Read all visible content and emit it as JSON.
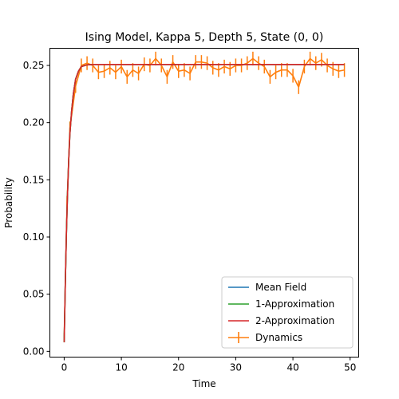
{
  "chart_data": {
    "type": "line",
    "title": "Ising Model, Kappa 5, Depth 5, State (0, 0)",
    "xlabel": "Time",
    "ylabel": "Probability",
    "xlim": [
      -2.5,
      51.5
    ],
    "ylim": [
      -0.005,
      0.265
    ],
    "xticks": [
      0,
      10,
      20,
      30,
      40,
      50
    ],
    "xtick_labels": [
      "0",
      "10",
      "20",
      "30",
      "40",
      "50"
    ],
    "yticks": [
      0.0,
      0.05,
      0.1,
      0.15,
      0.2,
      0.25
    ],
    "ytick_labels": [
      "0.00",
      "0.05",
      "0.10",
      "0.15",
      "0.20",
      "0.25"
    ],
    "grid": false,
    "legend_position": "lower-right",
    "series": [
      {
        "name": "Mean Field",
        "color": "#1f77b4",
        "x": [
          0,
          0.2,
          0.4,
          0.6,
          0.8,
          1.0,
          1.3,
          1.6,
          2.0,
          2.5,
          3.0,
          4.0,
          5.0,
          10,
          20,
          30,
          40,
          49
        ],
        "y": [
          0.008,
          0.06,
          0.105,
          0.14,
          0.168,
          0.19,
          0.21,
          0.225,
          0.238,
          0.245,
          0.249,
          0.2505,
          0.2508,
          0.2508,
          0.2508,
          0.2508,
          0.2508,
          0.2508
        ]
      },
      {
        "name": "1-Approximation",
        "color": "#2ca02c",
        "x": [
          0,
          0.2,
          0.4,
          0.6,
          0.8,
          1.0,
          1.3,
          1.6,
          2.0,
          2.5,
          3.0,
          4.0,
          5.0,
          10,
          20,
          30,
          40,
          49
        ],
        "y": [
          0.008,
          0.06,
          0.105,
          0.14,
          0.168,
          0.19,
          0.21,
          0.225,
          0.238,
          0.245,
          0.249,
          0.2505,
          0.2508,
          0.2508,
          0.2508,
          0.2508,
          0.2508,
          0.2508
        ]
      },
      {
        "name": "2-Approximation",
        "color": "#d62728",
        "x": [
          0,
          0.2,
          0.4,
          0.6,
          0.8,
          1.0,
          1.3,
          1.6,
          2.0,
          2.5,
          3.0,
          4.0,
          5.0,
          10,
          20,
          30,
          40,
          49
        ],
        "y": [
          0.008,
          0.06,
          0.105,
          0.14,
          0.168,
          0.19,
          0.21,
          0.225,
          0.238,
          0.245,
          0.249,
          0.2505,
          0.2508,
          0.2508,
          0.2508,
          0.2508,
          0.2508,
          0.2508
        ]
      },
      {
        "name": "Dynamics",
        "color": "#ff7f0e",
        "errorbars": true,
        "x": [
          0,
          0.5,
          1,
          2,
          3,
          4,
          5,
          6,
          7,
          8,
          9,
          10,
          11,
          12,
          13,
          14,
          15,
          16,
          17,
          18,
          19,
          20,
          21,
          22,
          23,
          24,
          25,
          26,
          27,
          28,
          29,
          30,
          31,
          32,
          33,
          34,
          35,
          36,
          37,
          38,
          39,
          40,
          41,
          42,
          43,
          44,
          45,
          46,
          47,
          48,
          49
        ],
        "y": [
          0.012,
          0.13,
          0.195,
          0.232,
          0.25,
          0.252,
          0.25,
          0.244,
          0.245,
          0.248,
          0.244,
          0.249,
          0.24,
          0.246,
          0.243,
          0.251,
          0.25,
          0.256,
          0.25,
          0.24,
          0.253,
          0.245,
          0.246,
          0.243,
          0.253,
          0.253,
          0.252,
          0.248,
          0.246,
          0.249,
          0.247,
          0.25,
          0.25,
          0.252,
          0.256,
          0.252,
          0.249,
          0.24,
          0.244,
          0.246,
          0.246,
          0.241,
          0.231,
          0.249,
          0.256,
          0.252,
          0.255,
          0.25,
          0.247,
          0.245,
          0.246
        ],
        "yerr": [
          0.004,
          0.006,
          0.006,
          0.006,
          0.006,
          0.006,
          0.006,
          0.006,
          0.006,
          0.006,
          0.006,
          0.006,
          0.006,
          0.006,
          0.006,
          0.006,
          0.006,
          0.006,
          0.006,
          0.006,
          0.006,
          0.006,
          0.006,
          0.006,
          0.006,
          0.006,
          0.006,
          0.006,
          0.006,
          0.006,
          0.006,
          0.006,
          0.006,
          0.006,
          0.006,
          0.006,
          0.006,
          0.006,
          0.006,
          0.006,
          0.006,
          0.006,
          0.006,
          0.006,
          0.006,
          0.006,
          0.006,
          0.006,
          0.006,
          0.006,
          0.006
        ]
      }
    ]
  }
}
